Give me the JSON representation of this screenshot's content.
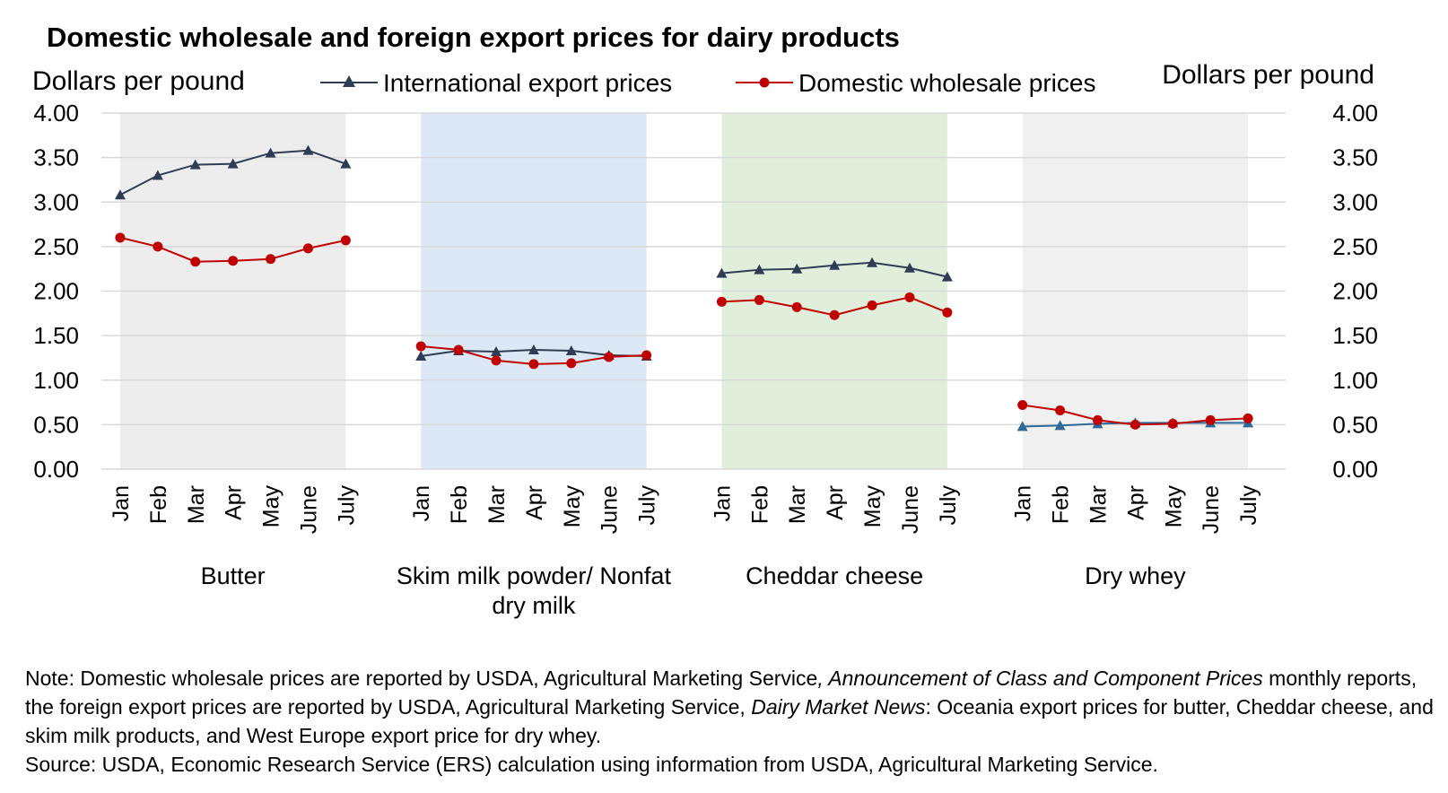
{
  "chart_data": {
    "type": "line",
    "title": "Domestic wholesale and foreign export prices for dairy products",
    "ylabel_left": "Dollars per pound",
    "ylabel_right": "Dollars per pound",
    "ylim": [
      0,
      4
    ],
    "yticks": [
      "0.00",
      "0.50",
      "1.00",
      "1.50",
      "2.00",
      "2.50",
      "3.00",
      "3.50",
      "4.00"
    ],
    "grid": true,
    "legend_position": "top-center",
    "groups": [
      {
        "name": "Butter",
        "label_lines": [
          "Butter"
        ],
        "months": [
          "Jan",
          "Feb",
          "Mar",
          "Apr",
          "May",
          "June",
          "July"
        ],
        "shade": "#ededed",
        "series": [
          {
            "name": "International export prices",
            "values": [
              3.08,
              3.3,
              3.42,
              3.43,
              3.55,
              3.58,
              3.43
            ]
          },
          {
            "name": "Domestic wholesale prices",
            "values": [
              2.6,
              2.5,
              2.33,
              2.34,
              2.36,
              2.48,
              2.57
            ]
          }
        ]
      },
      {
        "name": "Skim milk powder/ Nonfat dry milk",
        "label_lines": [
          "Skim milk powder/ Nonfat",
          "dry milk"
        ],
        "months": [
          "Jan",
          "Feb",
          "Mar",
          "Apr",
          "May",
          "June",
          "July"
        ],
        "shade": "#dce8f6",
        "series": [
          {
            "name": "International export prices",
            "values": [
              1.27,
              1.33,
              1.32,
              1.34,
              1.33,
              1.28,
              1.27
            ]
          },
          {
            "name": "Domestic wholesale prices",
            "values": [
              1.38,
              1.34,
              1.22,
              1.18,
              1.19,
              1.26,
              1.28
            ]
          }
        ]
      },
      {
        "name": "Cheddar cheese",
        "label_lines": [
          "Cheddar cheese"
        ],
        "months": [
          "Jan",
          "Feb",
          "Mar",
          "Apr",
          "May",
          "June",
          "July"
        ],
        "shade": "#e1eedb",
        "series": [
          {
            "name": "International export prices",
            "values": [
              2.2,
              2.24,
              2.25,
              2.29,
              2.32,
              2.26,
              2.16
            ]
          },
          {
            "name": "Domestic wholesale prices",
            "values": [
              1.88,
              1.9,
              1.82,
              1.73,
              1.84,
              1.93,
              1.76
            ]
          }
        ]
      },
      {
        "name": "Dry whey",
        "label_lines": [
          "Dry whey"
        ],
        "months": [
          "Jan",
          "Feb",
          "Mar",
          "Apr",
          "May",
          "June",
          "July"
        ],
        "shade": "#f0f0f0",
        "series": [
          {
            "name": "International export prices",
            "values": [
              0.48,
              0.49,
              0.51,
              0.52,
              0.52,
              0.52,
              0.52
            ]
          },
          {
            "name": "Domestic wholesale prices",
            "values": [
              0.72,
              0.66,
              0.55,
              0.5,
              0.51,
              0.55,
              0.57
            ]
          }
        ]
      }
    ],
    "legend": [
      {
        "name": "International export prices",
        "color": "#2e3d54",
        "marker": "triangle"
      },
      {
        "name": "Domestic wholesale prices",
        "color": "#c00000",
        "marker": "circle"
      }
    ],
    "whey_export_color": "#2e6896"
  },
  "note": {
    "segments": [
      {
        "text": "Note: Domestic wholesale prices are reported by USDA, Agricultural Marketing Service",
        "italic": false
      },
      {
        "text": ", Announcement of Class and Component Prices",
        "italic": true
      },
      {
        "text": " monthly reports, the foreign export prices are reported by USDA, Agricultural Marketing Service, ",
        "italic": false
      },
      {
        "text": "Dairy Market News",
        "italic": true
      },
      {
        "text": ": Oceania export prices for butter, Cheddar cheese, and skim milk products, and West Europe export price for dry whey.",
        "italic": false
      }
    ],
    "source": "Source: USDA, Economic Research Service (ERS) calculation using information from USDA, Agricultural Marketing Service."
  }
}
